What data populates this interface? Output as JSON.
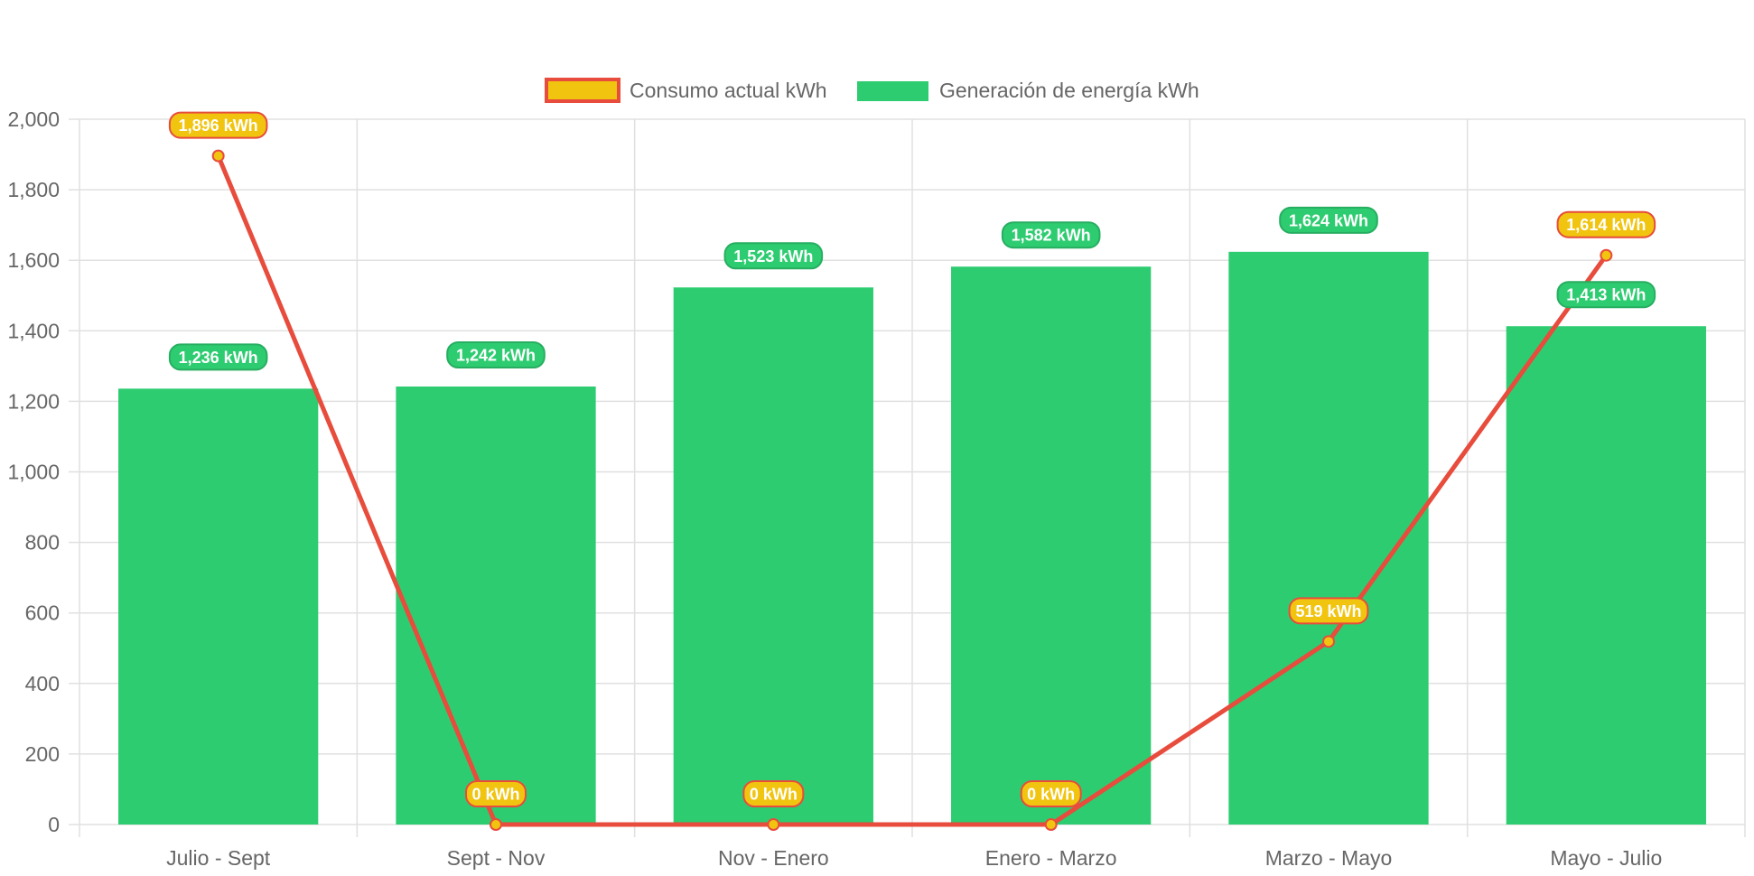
{
  "colors": {
    "bar_fill": "#2ecc71",
    "line_stroke": "#e74c3c",
    "line_point_fill": "#f1c40f",
    "grid": "#e0e0e0",
    "text": "#666666"
  },
  "chart_data": {
    "type": "bar",
    "title": "",
    "xlabel": "",
    "ylabel": "",
    "ylim": [
      0,
      2000
    ],
    "ytick_step": 200,
    "yticks": [
      "0",
      "200",
      "400",
      "600",
      "800",
      "1,000",
      "1,200",
      "1,400",
      "1,600",
      "1,800",
      "2,000"
    ],
    "grid": true,
    "legend_position": "top-center",
    "categories": [
      "Julio - Sept",
      "Sept - Nov",
      "Nov - Enero",
      "Enero - Marzo",
      "Marzo - Mayo",
      "Mayo - Julio"
    ],
    "series": [
      {
        "name": "Consumo actual kWh",
        "type": "line",
        "values": [
          1896,
          0,
          0,
          0,
          519,
          1614
        ],
        "labels": [
          "1,896 kWh",
          "0 kWh",
          "0 kWh",
          "0 kWh",
          "519 kWh",
          "1,614 kWh"
        ]
      },
      {
        "name": "Generación de energía kWh",
        "type": "bar",
        "values": [
          1236,
          1242,
          1523,
          1582,
          1624,
          1413
        ],
        "labels": [
          "1,236 kWh",
          "1,242 kWh",
          "1,523 kWh",
          "1,582 kWh",
          "1,624 kWh",
          "1,413 kWh"
        ]
      }
    ]
  }
}
